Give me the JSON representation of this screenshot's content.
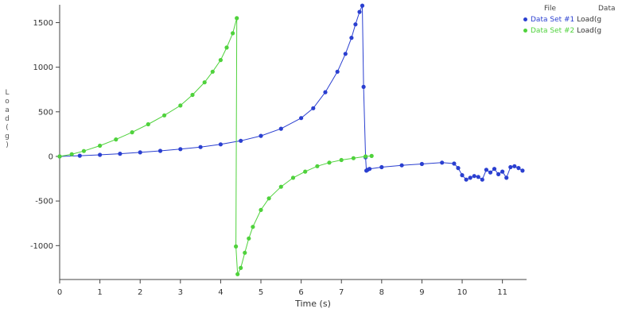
{
  "legend": {
    "header_file": "File",
    "header_data": "Data",
    "entries": [
      {
        "name": "Data Set #1",
        "data": "Load(g",
        "color": "#2a3fd0"
      },
      {
        "name": "Data Set #2",
        "data": "Load(g",
        "color": "#4fd23c"
      }
    ]
  },
  "ylabel_chars": [
    "L",
    "o",
    "a",
    "d",
    "(",
    "g",
    ")"
  ],
  "chart_data": {
    "type": "scatter",
    "title": "",
    "xlabel": "Time (s)",
    "ylabel": "Load (g)",
    "xlim": [
      0,
      11.6
    ],
    "ylim": [
      -1380,
      1700
    ],
    "xticks": [
      "0",
      "1",
      "2",
      "3",
      "4",
      "5",
      "6",
      "7",
      "8",
      "9",
      "10",
      "11"
    ],
    "yticks": [
      "1500",
      "1000",
      "500",
      "0",
      "-500",
      "-1000"
    ],
    "grid": false,
    "legend_position": "top-right",
    "series": [
      {
        "name": "Data Set #1",
        "color": "#2a3fd0",
        "x": [
          0.0,
          0.5,
          1.0,
          1.5,
          2.0,
          2.5,
          3.0,
          3.5,
          4.0,
          4.5,
          5.0,
          5.5,
          6.0,
          6.3,
          6.6,
          6.9,
          7.1,
          7.25,
          7.35,
          7.45,
          7.52,
          7.55,
          7.6,
          7.62,
          7.65,
          7.7,
          8.0,
          8.5,
          9.0,
          9.5,
          9.8,
          9.9,
          10.0,
          10.1,
          10.2,
          10.3,
          10.4,
          10.5,
          10.6,
          10.7,
          10.8,
          10.9,
          11.0,
          11.1,
          11.2,
          11.3,
          11.4,
          11.5
        ],
        "y": [
          0,
          8,
          18,
          30,
          45,
          62,
          82,
          105,
          135,
          175,
          230,
          310,
          430,
          540,
          720,
          950,
          1150,
          1330,
          1480,
          1620,
          1690,
          780,
          -10,
          -160,
          -150,
          -140,
          -120,
          -100,
          -85,
          -70,
          -80,
          -130,
          -210,
          -260,
          -240,
          -220,
          -230,
          -260,
          -150,
          -180,
          -140,
          -200,
          -170,
          -240,
          -120,
          -110,
          -130,
          -160
        ]
      },
      {
        "name": "Data Set #2",
        "color": "#4fd23c",
        "x": [
          0.0,
          0.3,
          0.6,
          1.0,
          1.4,
          1.8,
          2.2,
          2.6,
          3.0,
          3.3,
          3.6,
          3.8,
          4.0,
          4.15,
          4.3,
          4.4,
          4.38,
          4.42,
          4.5,
          4.6,
          4.7,
          4.8,
          5.0,
          5.2,
          5.5,
          5.8,
          6.1,
          6.4,
          6.7,
          7.0,
          7.3,
          7.6,
          7.75
        ],
        "y": [
          0,
          25,
          60,
          120,
          190,
          270,
          360,
          460,
          570,
          690,
          830,
          950,
          1080,
          1220,
          1380,
          1550,
          -1010,
          -1320,
          -1250,
          -1080,
          -920,
          -790,
          -600,
          -470,
          -340,
          -240,
          -170,
          -110,
          -70,
          -40,
          -20,
          0,
          5
        ]
      }
    ]
  }
}
